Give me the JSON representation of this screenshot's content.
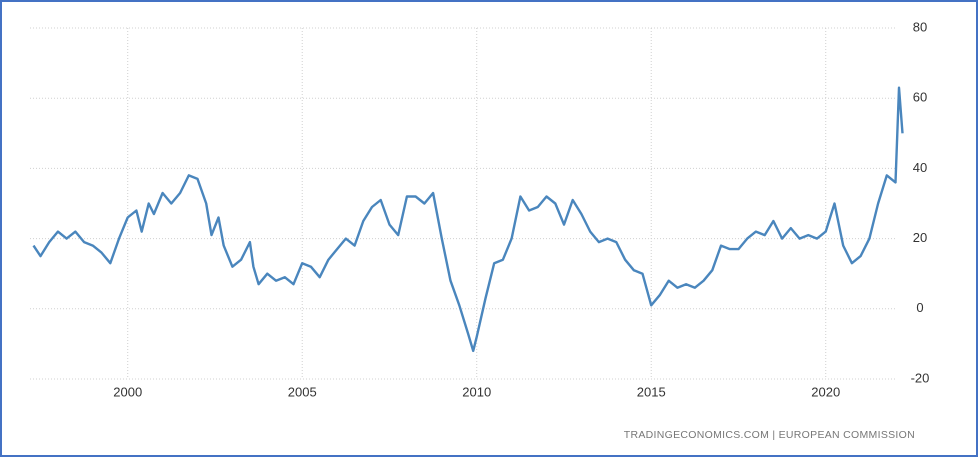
{
  "chart_data": {
    "type": "line",
    "source": "TRADINGECONOMICS.COM  |  EUROPEAN COMMISSION",
    "x": [
      1997.3,
      1997.5,
      1997.75,
      1998.0,
      1998.25,
      1998.5,
      1998.75,
      1999.0,
      1999.25,
      1999.5,
      1999.75,
      2000.0,
      2000.25,
      2000.4,
      2000.6,
      2000.75,
      2001.0,
      2001.25,
      2001.5,
      2001.75,
      2002.0,
      2002.25,
      2002.4,
      2002.6,
      2002.75,
      2003.0,
      2003.25,
      2003.5,
      2003.6,
      2003.75,
      2004.0,
      2004.25,
      2004.5,
      2004.75,
      2005.0,
      2005.25,
      2005.5,
      2005.75,
      2006.0,
      2006.25,
      2006.5,
      2006.75,
      2007.0,
      2007.25,
      2007.5,
      2007.75,
      2008.0,
      2008.25,
      2008.5,
      2008.75,
      2009.0,
      2009.25,
      2009.5,
      2009.75,
      2009.9,
      2010.0,
      2010.25,
      2010.5,
      2010.75,
      2011.0,
      2011.25,
      2011.5,
      2011.75,
      2012.0,
      2012.25,
      2012.5,
      2012.75,
      2013.0,
      2013.25,
      2013.5,
      2013.75,
      2014.0,
      2014.25,
      2014.5,
      2014.75,
      2015.0,
      2015.25,
      2015.5,
      2015.75,
      2016.0,
      2016.25,
      2016.5,
      2016.75,
      2017.0,
      2017.25,
      2017.5,
      2017.75,
      2018.0,
      2018.25,
      2018.5,
      2018.75,
      2019.0,
      2019.25,
      2019.5,
      2019.75,
      2020.0,
      2020.25,
      2020.5,
      2020.75,
      2021.0,
      2021.25,
      2021.5,
      2021.75,
      2022.0,
      2022.1,
      2022.2
    ],
    "series": [
      {
        "color": "#4a86bd",
        "values": [
          18,
          15,
          19,
          22,
          20,
          22,
          19,
          18,
          16,
          13,
          20,
          26,
          28,
          22,
          30,
          27,
          33,
          30,
          33,
          38,
          37,
          30,
          21,
          26,
          18,
          12,
          14,
          19,
          12,
          7,
          10,
          8,
          9,
          7,
          13,
          12,
          9,
          14,
          17,
          20,
          18,
          25,
          29,
          31,
          24,
          21,
          32,
          32,
          30,
          33,
          20,
          8,
          1,
          -7,
          -12,
          -8,
          3,
          13,
          14,
          20,
          32,
          28,
          29,
          32,
          30,
          24,
          31,
          27,
          22,
          19,
          20,
          19,
          14,
          11,
          10,
          1,
          4,
          8,
          6,
          7,
          6,
          8,
          11,
          18,
          17,
          17,
          20,
          22,
          21,
          25,
          20,
          23,
          20,
          21,
          20,
          22,
          30,
          18,
          13,
          15,
          20,
          30,
          38,
          36,
          63,
          50
        ]
      }
    ],
    "xlim": [
      1997.2,
      2022.3
    ],
    "xticks": [
      2000,
      2005,
      2010,
      2015,
      2020
    ],
    "ylim": [
      -20,
      80
    ],
    "yticks": [
      -20,
      0,
      20,
      40,
      60,
      80
    ],
    "grid": true
  }
}
